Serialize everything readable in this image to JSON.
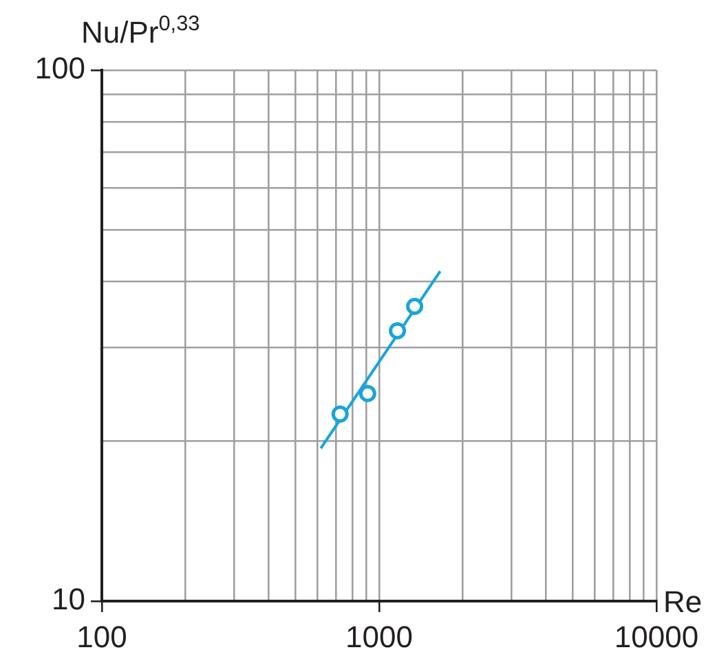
{
  "chart_data": {
    "type": "scatter",
    "xlabel": "Re",
    "ylabel": "Nu/Pr$^{0,33}$",
    "log": "xy",
    "grid": true,
    "marker": "circle",
    "xlim": [
      100,
      10000
    ],
    "ylim": [
      10,
      100
    ],
    "xticks": [
      100,
      {
        "value": 200,
        "label": null
      },
      {
        "value": 300,
        "label": null
      },
      {
        "value": 400,
        "label": null
      },
      {
        "value": 500,
        "label": null
      },
      {
        "value": 600,
        "label": null
      },
      {
        "value": 700,
        "label": null
      },
      {
        "value": 800,
        "label": null
      },
      {
        "value": 900,
        "label": null
      },
      1000,
      {
        "value": 2000,
        "label": null
      },
      {
        "value": 3000,
        "label": null
      },
      {
        "value": 4000,
        "label": null
      },
      {
        "value": 5000,
        "label": null
      },
      {
        "value": 6000,
        "label": null
      },
      {
        "value": 7000,
        "label": null
      },
      {
        "value": 8000,
        "label": null
      },
      {
        "value": 9000,
        "label": null
      },
      10000
    ],
    "yticks": [
      10,
      {
        "value": 20,
        "label": null
      },
      {
        "value": 30,
        "label": null
      },
      {
        "value": 40,
        "label": null
      },
      {
        "value": 50,
        "label": null
      },
      {
        "value": 60,
        "label": null
      },
      {
        "value": 70,
        "label": null
      },
      {
        "value": 80,
        "label": null
      },
      {
        "value": 90,
        "label": null
      },
      100
    ],
    "series": [
      {
        "type": "scatter",
        "color": "#1aa3dc",
        "x": [
          723,
          909,
          1164,
          1343
        ],
        "values": [
          22.5,
          24.6,
          32.3,
          35.9
        ]
      },
      {
        "type": "line",
        "color": "#1aa3dc",
        "x": [
          616,
          1660
        ],
        "values": [
          19.4,
          41.8
        ],
        "marker": "none",
        "line_style": "solid"
      }
    ]
  }
}
